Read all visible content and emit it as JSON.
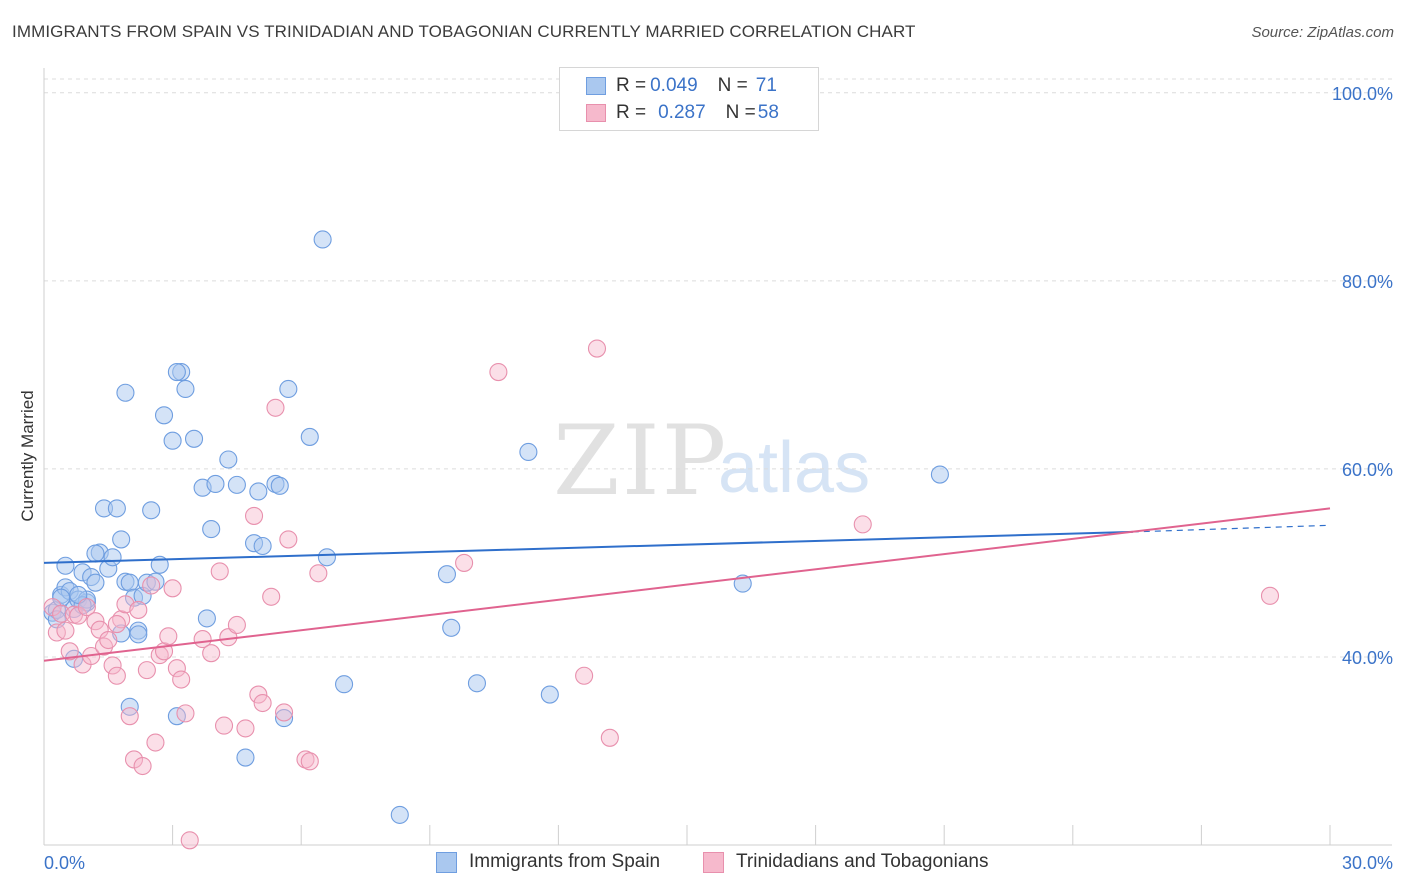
{
  "header": {
    "title": "IMMIGRANTS FROM SPAIN VS TRINIDADIAN AND TOBAGONIAN CURRENTLY MARRIED CORRELATION CHART",
    "source": "Source: ZipAtlas.com"
  },
  "watermark": {
    "zip": "ZIP",
    "atlas": "atlas"
  },
  "legend": {
    "rows": [
      {
        "r_label": "R = ",
        "r_value": "0.049",
        "n_label": "N = ",
        "n_value": "71"
      },
      {
        "r_label": "R = ",
        "r_value": "0.287",
        "n_label": "N = ",
        "n_value": "58"
      }
    ]
  },
  "colors": {
    "blue_fill": "#aac8ef",
    "blue_stroke": "#6f9ee0",
    "blue_line": "#2f6fcb",
    "pink_fill": "#f6b9cc",
    "pink_stroke": "#e890ad",
    "pink_line": "#e0638f",
    "axis_text": "#3b73c8",
    "grid": "#dcdcdc"
  },
  "chart_data": {
    "type": "scatter",
    "title": "IMMIGRANTS FROM SPAIN VS TRINIDADIAN AND TOBAGONIAN CURRENTLY MARRIED CORRELATION CHART",
    "xlabel": "",
    "ylabel": "Currently Married",
    "xlim": [
      0,
      30
    ],
    "ylim": [
      20,
      102
    ],
    "x_tick_labels": [
      "0.0%",
      "30.0%"
    ],
    "y_ticks": [
      40,
      60,
      80,
      100
    ],
    "y_tick_labels": [
      "40.0%",
      "60.0%",
      "80.0%",
      "100.0%"
    ],
    "legend_placement": "top-center",
    "series": [
      {
        "name": "Immigrants from Spain",
        "color": "blue",
        "r": 0.049,
        "n": 71,
        "trend": {
          "x0": 0,
          "y0": 50.0,
          "x1": 25.4,
          "y1": 53.3,
          "dash_to_x": 30,
          "dash_to_y": 54.0
        },
        "points": [
          [
            0.2,
            44.7
          ],
          [
            0.3,
            45.0
          ],
          [
            0.4,
            46.6
          ],
          [
            0.5,
            47.4
          ],
          [
            0.6,
            47.0
          ],
          [
            0.7,
            45.1
          ],
          [
            0.8,
            46.1
          ],
          [
            0.9,
            49.0
          ],
          [
            1.0,
            45.8
          ],
          [
            0.3,
            44.0
          ],
          [
            0.5,
            49.7
          ],
          [
            0.7,
            39.8
          ],
          [
            1.0,
            46.1
          ],
          [
            1.1,
            48.5
          ],
          [
            1.2,
            47.9
          ],
          [
            1.3,
            51.1
          ],
          [
            1.4,
            55.8
          ],
          [
            1.5,
            49.4
          ],
          [
            1.6,
            50.6
          ],
          [
            1.7,
            55.8
          ],
          [
            1.8,
            52.5
          ],
          [
            1.9,
            48.0
          ],
          [
            2.0,
            47.9
          ],
          [
            2.1,
            46.3
          ],
          [
            2.2,
            42.8
          ],
          [
            2.3,
            46.5
          ],
          [
            2.4,
            47.9
          ],
          [
            2.5,
            55.6
          ],
          [
            2.6,
            48.0
          ],
          [
            2.7,
            49.8
          ],
          [
            2.8,
            65.7
          ],
          [
            2.0,
            34.7
          ],
          [
            1.9,
            68.1
          ],
          [
            3.0,
            63.0
          ],
          [
            3.2,
            70.3
          ],
          [
            3.3,
            68.5
          ],
          [
            3.1,
            70.3
          ],
          [
            3.5,
            63.2
          ],
          [
            3.7,
            58.0
          ],
          [
            3.8,
            44.1
          ],
          [
            3.9,
            53.6
          ],
          [
            4.0,
            58.4
          ],
          [
            4.3,
            61.0
          ],
          [
            4.5,
            58.3
          ],
          [
            4.7,
            29.3
          ],
          [
            4.9,
            52.1
          ],
          [
            5.0,
            57.6
          ],
          [
            5.1,
            51.8
          ],
          [
            5.4,
            58.4
          ],
          [
            5.5,
            58.2
          ],
          [
            5.7,
            68.5
          ],
          [
            5.6,
            33.5
          ],
          [
            6.2,
            63.4
          ],
          [
            6.5,
            84.4
          ],
          [
            6.6,
            50.6
          ],
          [
            7.0,
            37.1
          ],
          [
            9.4,
            48.8
          ],
          [
            9.5,
            43.1
          ],
          [
            10.1,
            37.2
          ],
          [
            11.3,
            61.8
          ],
          [
            11.8,
            36.0
          ],
          [
            16.3,
            47.8
          ],
          [
            20.9,
            59.4
          ],
          [
            8.3,
            23.2
          ],
          [
            3.1,
            33.7
          ],
          [
            1.8,
            42.5
          ],
          [
            0.4,
            46.3
          ],
          [
            0.9,
            45.5
          ],
          [
            2.2,
            42.4
          ],
          [
            0.8,
            46.6
          ],
          [
            1.2,
            51.0
          ]
        ]
      },
      {
        "name": "Trinidadians and Tobagonians",
        "color": "pink",
        "r": 0.287,
        "n": 58,
        "trend": {
          "x0": 0,
          "y0": 39.6,
          "x1": 30,
          "y1": 55.8
        },
        "points": [
          [
            0.2,
            45.3
          ],
          [
            0.3,
            42.6
          ],
          [
            0.4,
            44.6
          ],
          [
            0.5,
            42.8
          ],
          [
            0.6,
            40.6
          ],
          [
            0.7,
            44.5
          ],
          [
            0.8,
            44.4
          ],
          [
            0.9,
            39.2
          ],
          [
            1.0,
            45.3
          ],
          [
            1.1,
            40.1
          ],
          [
            1.2,
            43.8
          ],
          [
            1.3,
            42.9
          ],
          [
            1.4,
            41.1
          ],
          [
            1.5,
            41.8
          ],
          [
            1.6,
            39.1
          ],
          [
            1.7,
            38.0
          ],
          [
            1.8,
            44.0
          ],
          [
            1.9,
            45.6
          ],
          [
            2.0,
            33.7
          ],
          [
            2.1,
            29.1
          ],
          [
            2.2,
            45.0
          ],
          [
            2.3,
            28.4
          ],
          [
            2.4,
            38.6
          ],
          [
            2.5,
            47.6
          ],
          [
            2.6,
            30.9
          ],
          [
            2.7,
            40.2
          ],
          [
            2.8,
            40.6
          ],
          [
            2.9,
            42.2
          ],
          [
            3.0,
            47.3
          ],
          [
            3.1,
            38.8
          ],
          [
            3.2,
            37.6
          ],
          [
            3.3,
            34.0
          ],
          [
            3.4,
            20.5
          ],
          [
            3.7,
            41.9
          ],
          [
            3.9,
            40.4
          ],
          [
            4.1,
            49.1
          ],
          [
            4.3,
            42.1
          ],
          [
            4.5,
            43.4
          ],
          [
            4.2,
            32.7
          ],
          [
            4.7,
            32.4
          ],
          [
            4.9,
            55.0
          ],
          [
            5.0,
            36.0
          ],
          [
            5.1,
            35.1
          ],
          [
            5.3,
            46.4
          ],
          [
            5.4,
            66.5
          ],
          [
            5.6,
            34.1
          ],
          [
            5.7,
            52.5
          ],
          [
            6.1,
            29.1
          ],
          [
            6.2,
            28.9
          ],
          [
            6.4,
            48.9
          ],
          [
            9.8,
            50.0
          ],
          [
            10.6,
            70.3
          ],
          [
            12.6,
            38.0
          ],
          [
            13.2,
            31.4
          ],
          [
            12.9,
            72.8
          ],
          [
            19.1,
            54.1
          ],
          [
            28.6,
            46.5
          ],
          [
            1.7,
            43.5
          ]
        ]
      }
    ]
  },
  "bottom_legend": {
    "item1": "Immigrants from Spain",
    "item2": "Trinidadians and Tobagonians"
  }
}
